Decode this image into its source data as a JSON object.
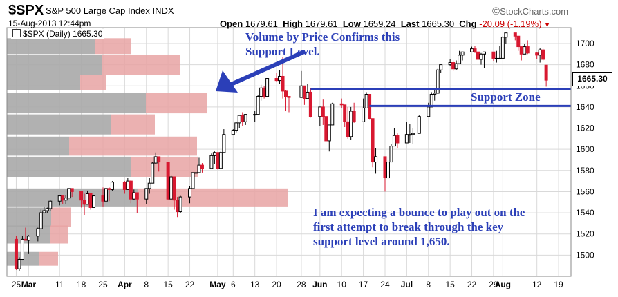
{
  "header": {
    "symbol": "$SPX",
    "name": "S&P 500 Large Cap Index",
    "type": "INDX",
    "datetime": "15-Aug-2013 12:44pm",
    "open_label": "Open",
    "open": "1679.61",
    "high_label": "High",
    "high": "1679.61",
    "low_label": "Low",
    "low": "1659.24",
    "last_label": "Last",
    "last": "1665.30",
    "chg_label": "Chg",
    "chg": "-20.09 (-1.19%)",
    "brand": "StockCharts.com",
    "brand_mark": "©"
  },
  "legend": {
    "label": "$SPX (Daily) 1665.30"
  },
  "last_tag": "1665.30",
  "annotations": {
    "vbp": [
      "Volume by Price Confirms this",
      "Support Level."
    ],
    "support_zone": "Support Zone",
    "bottom": [
      "I am expecting a bounce to play out on the",
      "first attempt to break through the key",
      "support level around 1,650."
    ]
  },
  "colors": {
    "up": "#000000",
    "down": "#d81830",
    "annotation": "#2b3fb8",
    "vbp_down": "#e8a3a3",
    "vbp_up": "#a8a8a8",
    "grid": "#d9d9d9"
  },
  "chart_data": {
    "type": "candlestick",
    "title": "$SPX (Daily) 1665.30",
    "ylim": [
      1480,
      1715
    ],
    "y_ticks": [
      1500,
      1520,
      1540,
      1560,
      1580,
      1600,
      1620,
      1640,
      1660,
      1680,
      1700
    ],
    "x_tick_labels": [
      {
        "date": "2013-02-25",
        "label": "25",
        "bold": false
      },
      {
        "date": "2013-03-01",
        "label": "Mar",
        "bold": true
      },
      {
        "date": "2013-03-11",
        "label": "11",
        "bold": false
      },
      {
        "date": "2013-03-18",
        "label": "18",
        "bold": false
      },
      {
        "date": "2013-03-25",
        "label": "25",
        "bold": false
      },
      {
        "date": "2013-04-01",
        "label": "Apr",
        "bold": true
      },
      {
        "date": "2013-04-08",
        "label": "8",
        "bold": false
      },
      {
        "date": "2013-04-15",
        "label": "15",
        "bold": false
      },
      {
        "date": "2013-04-22",
        "label": "22",
        "bold": false
      },
      {
        "date": "2013-05-01",
        "label": "May",
        "bold": true
      },
      {
        "date": "2013-05-06",
        "label": "6",
        "bold": false
      },
      {
        "date": "2013-05-13",
        "label": "13",
        "bold": false
      },
      {
        "date": "2013-05-20",
        "label": "20",
        "bold": false
      },
      {
        "date": "2013-05-28",
        "label": "28",
        "bold": false
      },
      {
        "date": "2013-06-03",
        "label": "Jun",
        "bold": true
      },
      {
        "date": "2013-06-10",
        "label": "10",
        "bold": false
      },
      {
        "date": "2013-06-17",
        "label": "17",
        "bold": false
      },
      {
        "date": "2013-06-24",
        "label": "24",
        "bold": false
      },
      {
        "date": "2013-07-01",
        "label": "Jul",
        "bold": true
      },
      {
        "date": "2013-07-08",
        "label": "8",
        "bold": false
      },
      {
        "date": "2013-07-15",
        "label": "15",
        "bold": false
      },
      {
        "date": "2013-07-22",
        "label": "22",
        "bold": false
      },
      {
        "date": "2013-07-29",
        "label": "29",
        "bold": false
      },
      {
        "date": "2013-08-01",
        "label": "Aug",
        "bold": true
      },
      {
        "date": "2013-08-12",
        "label": "12",
        "bold": false
      },
      {
        "date": "2013-08-19",
        "label": "19",
        "bold": false
      }
    ],
    "x_range": [
      "2013-02-22",
      "2013-08-23"
    ],
    "vbp_bars": [
      {
        "price_low": 1690,
        "price_high": 1705,
        "down": 51,
        "up": 128
      },
      {
        "price_low": 1670,
        "price_high": 1689,
        "down": 112,
        "up": 138
      },
      {
        "price_low": 1656,
        "price_high": 1670,
        "down": 38,
        "up": 106
      },
      {
        "price_low": 1634,
        "price_high": 1653,
        "down": 88,
        "up": 201
      },
      {
        "price_low": 1614,
        "price_high": 1633,
        "down": 64,
        "up": 150
      },
      {
        "price_low": 1594,
        "price_high": 1612,
        "down": 185,
        "up": 90
      },
      {
        "price_low": 1574,
        "price_high": 1593,
        "down": 97,
        "up": 180
      },
      {
        "price_low": 1546,
        "price_high": 1563,
        "down": 216,
        "up": 190
      },
      {
        "price_low": 1527,
        "price_high": 1545,
        "down": 28,
        "up": 64
      },
      {
        "price_low": 1511,
        "price_high": 1528,
        "down": 27,
        "up": 62
      },
      {
        "price_low": 1490,
        "price_high": 1503,
        "down": 27,
        "up": 47
      }
    ],
    "support_lines": [
      {
        "price": 1657,
        "x_start": "2013-05-31"
      },
      {
        "price": 1641,
        "x_start": "2013-06-19"
      }
    ],
    "candles": [
      [
        "2013-02-25",
        1515,
        1518,
        1486,
        1487
      ],
      [
        "2013-02-26",
        1487,
        1498,
        1485,
        1496
      ],
      [
        "2013-02-27",
        1496,
        1518,
        1495,
        1515
      ],
      [
        "2013-02-28",
        1515,
        1526,
        1514,
        1514
      ],
      [
        "2013-03-01",
        1514,
        1519,
        1501,
        1518
      ],
      [
        "2013-03-04",
        1518,
        1526,
        1513,
        1525
      ],
      [
        "2013-03-05",
        1525,
        1543,
        1525,
        1540
      ],
      [
        "2013-03-06",
        1540,
        1546,
        1540,
        1542
      ],
      [
        "2013-03-07",
        1542,
        1545,
        1540,
        1544
      ],
      [
        "2013-03-08",
        1544,
        1552,
        1542,
        1551
      ],
      [
        "2013-03-11",
        1551,
        1556,
        1547,
        1556
      ],
      [
        "2013-03-12",
        1556,
        1556,
        1548,
        1552
      ],
      [
        "2013-03-13",
        1552,
        1557,
        1548,
        1554
      ],
      [
        "2013-03-14",
        1554,
        1563,
        1554,
        1563
      ],
      [
        "2013-03-15",
        1563,
        1563,
        1555,
        1560
      ],
      [
        "2013-03-18",
        1560,
        1560,
        1545,
        1552
      ],
      [
        "2013-03-19",
        1552,
        1558,
        1538,
        1548
      ],
      [
        "2013-03-20",
        1548,
        1561,
        1548,
        1558
      ],
      [
        "2013-03-21",
        1558,
        1558,
        1543,
        1545
      ],
      [
        "2013-03-22",
        1545,
        1557,
        1545,
        1556
      ],
      [
        "2013-03-25",
        1556,
        1564,
        1546,
        1551
      ],
      [
        "2013-03-26",
        1551,
        1563,
        1551,
        1563
      ],
      [
        "2013-03-27",
        1563,
        1564,
        1551,
        1562
      ],
      [
        "2013-03-28",
        1562,
        1570,
        1561,
        1569
      ],
      [
        "2013-04-01",
        1569,
        1570,
        1558,
        1562
      ],
      [
        "2013-04-02",
        1562,
        1573,
        1562,
        1570
      ],
      [
        "2013-04-03",
        1570,
        1571,
        1549,
        1553
      ],
      [
        "2013-04-04",
        1553,
        1562,
        1552,
        1559
      ],
      [
        "2013-04-05",
        1559,
        1559,
        1540,
        1553
      ],
      [
        "2013-04-08",
        1553,
        1563,
        1548,
        1563
      ],
      [
        "2013-04-09",
        1563,
        1573,
        1558,
        1568
      ],
      [
        "2013-04-10",
        1568,
        1588,
        1568,
        1587
      ],
      [
        "2013-04-11",
        1587,
        1597,
        1586,
        1593
      ],
      [
        "2013-04-12",
        1593,
        1593,
        1579,
        1588
      ],
      [
        "2013-04-15",
        1588,
        1588,
        1552,
        1553
      ],
      [
        "2013-04-16",
        1553,
        1575,
        1553,
        1574
      ],
      [
        "2013-04-17",
        1574,
        1574,
        1543,
        1552
      ],
      [
        "2013-04-18",
        1552,
        1555,
        1536,
        1541
      ],
      [
        "2013-04-19",
        1541,
        1556,
        1540,
        1555
      ],
      [
        "2013-04-22",
        1555,
        1565,
        1549,
        1563
      ],
      [
        "2013-04-23",
        1563,
        1578,
        1563,
        1578
      ],
      [
        "2013-04-24",
        1578,
        1583,
        1575,
        1578
      ],
      [
        "2013-04-25",
        1578,
        1592,
        1578,
        1585
      ],
      [
        "2013-04-26",
        1585,
        1587,
        1578,
        1582
      ],
      [
        "2013-04-29",
        1582,
        1596,
        1582,
        1594
      ],
      [
        "2013-04-30",
        1594,
        1598,
        1586,
        1597
      ],
      [
        "2013-05-01",
        1597,
        1597,
        1581,
        1582
      ],
      [
        "2013-05-02",
        1582,
        1598,
        1582,
        1597
      ],
      [
        "2013-05-03",
        1597,
        1619,
        1597,
        1614
      ],
      [
        "2013-05-06",
        1614,
        1619,
        1614,
        1618
      ],
      [
        "2013-05-07",
        1618,
        1626,
        1616,
        1625
      ],
      [
        "2013-05-08",
        1625,
        1632,
        1620,
        1632
      ],
      [
        "2013-05-09",
        1632,
        1635,
        1622,
        1626
      ],
      [
        "2013-05-10",
        1626,
        1633,
        1623,
        1633
      ],
      [
        "2013-05-13",
        1633,
        1636,
        1626,
        1633
      ],
      [
        "2013-05-14",
        1633,
        1651,
        1633,
        1650
      ],
      [
        "2013-05-15",
        1650,
        1661,
        1646,
        1658
      ],
      [
        "2013-05-16",
        1658,
        1660,
        1648,
        1650
      ],
      [
        "2013-05-17",
        1650,
        1667,
        1650,
        1667
      ],
      [
        "2013-05-20",
        1667,
        1672,
        1664,
        1665
      ],
      [
        "2013-05-21",
        1665,
        1675,
        1662,
        1669
      ],
      [
        "2013-05-22",
        1669,
        1687,
        1648,
        1655
      ],
      [
        "2013-05-23",
        1655,
        1656,
        1636,
        1650
      ],
      [
        "2013-05-24",
        1650,
        1650,
        1635,
        1649
      ],
      [
        "2013-05-28",
        1649,
        1674,
        1649,
        1660
      ],
      [
        "2013-05-29",
        1660,
        1660,
        1642,
        1648
      ],
      [
        "2013-05-30",
        1648,
        1662,
        1648,
        1654
      ],
      [
        "2013-05-31",
        1654,
        1658,
        1630,
        1631
      ],
      [
        "2013-06-03",
        1631,
        1640,
        1622,
        1640
      ],
      [
        "2013-06-04",
        1640,
        1647,
        1623,
        1631
      ],
      [
        "2013-06-05",
        1631,
        1631,
        1608,
        1608
      ],
      [
        "2013-06-06",
        1608,
        1623,
        1598,
        1623
      ],
      [
        "2013-06-07",
        1623,
        1644,
        1623,
        1643
      ],
      [
        "2013-06-10",
        1643,
        1648,
        1639,
        1642
      ],
      [
        "2013-06-11",
        1642,
        1642,
        1621,
        1626
      ],
      [
        "2013-06-12",
        1626,
        1640,
        1610,
        1612
      ],
      [
        "2013-06-13",
        1612,
        1640,
        1609,
        1636
      ],
      [
        "2013-06-14",
        1636,
        1644,
        1625,
        1626
      ],
      [
        "2013-06-17",
        1626,
        1648,
        1626,
        1639
      ],
      [
        "2013-06-18",
        1639,
        1654,
        1639,
        1652
      ],
      [
        "2013-06-19",
        1652,
        1652,
        1628,
        1629
      ],
      [
        "2013-06-20",
        1629,
        1629,
        1583,
        1588
      ],
      [
        "2013-06-21",
        1588,
        1601,
        1577,
        1593
      ],
      [
        "2013-06-24",
        1593,
        1593,
        1560,
        1573
      ],
      [
        "2013-06-25",
        1573,
        1593,
        1573,
        1588
      ],
      [
        "2013-06-26",
        1588,
        1605,
        1588,
        1603
      ],
      [
        "2013-06-27",
        1603,
        1620,
        1603,
        1613
      ],
      [
        "2013-06-28",
        1613,
        1615,
        1601,
        1606
      ],
      [
        "2013-07-01",
        1606,
        1626,
        1606,
        1614
      ],
      [
        "2013-07-02",
        1614,
        1624,
        1606,
        1614
      ],
      [
        "2013-07-03",
        1614,
        1620,
        1605,
        1615
      ],
      [
        "2013-07-05",
        1615,
        1632,
        1615,
        1631
      ],
      [
        "2013-07-08",
        1631,
        1644,
        1631,
        1640
      ],
      [
        "2013-07-09",
        1640,
        1654,
        1640,
        1652
      ],
      [
        "2013-07-10",
        1652,
        1656,
        1646,
        1653
      ],
      [
        "2013-07-11",
        1653,
        1676,
        1653,
        1675
      ],
      [
        "2013-07-12",
        1675,
        1680,
        1672,
        1680
      ],
      [
        "2013-07-15",
        1680,
        1685,
        1679,
        1682
      ],
      [
        "2013-07-16",
        1682,
        1684,
        1674,
        1676
      ],
      [
        "2013-07-17",
        1676,
        1684,
        1675,
        1681
      ],
      [
        "2013-07-18",
        1681,
        1693,
        1681,
        1689
      ],
      [
        "2013-07-19",
        1689,
        1692,
        1684,
        1692
      ],
      [
        "2013-07-22",
        1692,
        1697,
        1692,
        1695
      ],
      [
        "2013-07-23",
        1695,
        1698,
        1691,
        1692
      ],
      [
        "2013-07-24",
        1692,
        1698,
        1683,
        1685
      ],
      [
        "2013-07-25",
        1685,
        1691,
        1680,
        1690
      ],
      [
        "2013-07-26",
        1690,
        1692,
        1677,
        1692
      ],
      [
        "2013-07-29",
        1692,
        1692,
        1683,
        1686
      ],
      [
        "2013-07-30",
        1686,
        1693,
        1682,
        1686
      ],
      [
        "2013-07-31",
        1686,
        1698,
        1685,
        1686
      ],
      [
        "2013-08-01",
        1686,
        1707,
        1686,
        1706
      ],
      [
        "2013-08-02",
        1706,
        1710,
        1700,
        1710
      ],
      [
        "2013-08-05",
        1710,
        1710,
        1703,
        1707
      ],
      [
        "2013-08-06",
        1707,
        1707,
        1693,
        1697
      ],
      [
        "2013-08-07",
        1697,
        1697,
        1684,
        1690
      ],
      [
        "2013-08-08",
        1690,
        1700,
        1690,
        1697
      ],
      [
        "2013-08-09",
        1697,
        1703,
        1690,
        1691
      ],
      [
        "2013-08-12",
        1691,
        1692,
        1685,
        1689
      ],
      [
        "2013-08-13",
        1689,
        1696,
        1682,
        1694
      ],
      [
        "2013-08-14",
        1694,
        1695,
        1684,
        1685
      ],
      [
        "2013-08-15",
        1679.61,
        1679.61,
        1659.24,
        1665.3
      ]
    ]
  }
}
